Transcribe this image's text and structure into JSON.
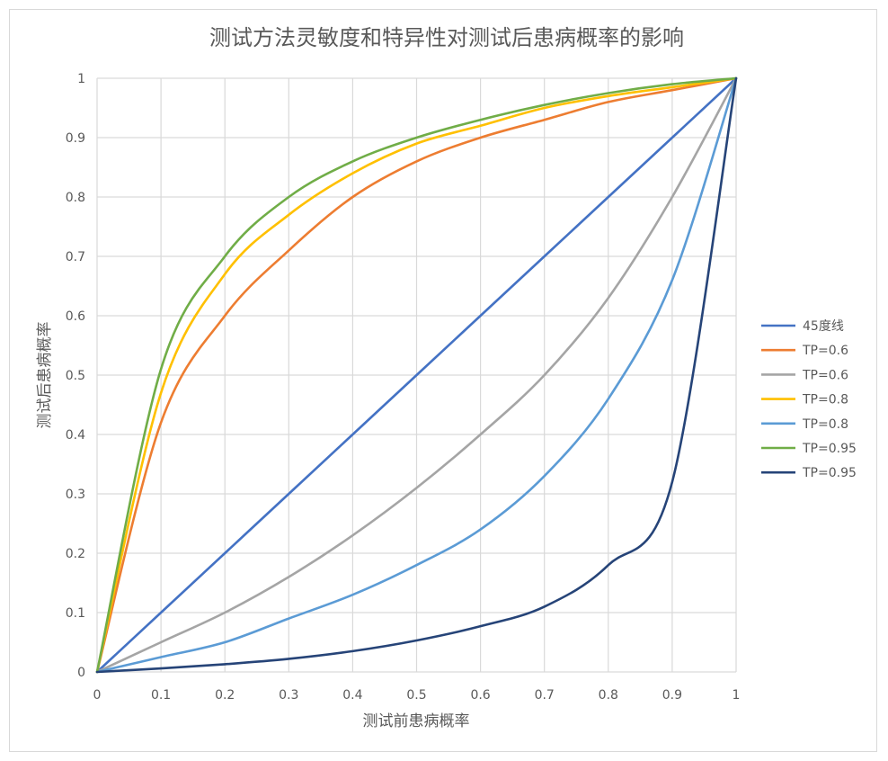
{
  "chart_data": {
    "type": "line",
    "title": "测试方法灵敏度和特异性对测试后患病概率的影响",
    "xlabel": "测试前患病概率",
    "ylabel": "测试后患病概率",
    "xlim": [
      0,
      1
    ],
    "ylim": [
      0,
      1
    ],
    "xticks": [
      "0",
      "0.1",
      "0.2",
      "0.3",
      "0.4",
      "0.5",
      "0.6",
      "0.7",
      "0.8",
      "0.9",
      "1"
    ],
    "yticks": [
      "0",
      "0.1",
      "0.2",
      "0.3",
      "0.4",
      "0.5",
      "0.6",
      "0.7",
      "0.8",
      "0.9",
      "1"
    ],
    "grid": true,
    "legend_position": "right",
    "x": [
      0,
      0.1,
      0.2,
      0.3,
      0.4,
      0.5,
      0.6,
      0.7,
      0.8,
      0.9,
      1
    ],
    "series": [
      {
        "name": "45度线",
        "color": "#4472c4",
        "values": [
          0,
          0.1,
          0.2,
          0.3,
          0.4,
          0.5,
          0.6,
          0.7,
          0.8,
          0.9,
          1
        ]
      },
      {
        "name": "TP=0.6",
        "color": "#ed7d31",
        "values": [
          0,
          0.42,
          0.6,
          0.71,
          0.8,
          0.86,
          0.9,
          0.93,
          0.96,
          0.98,
          1
        ]
      },
      {
        "name": "TP=0.6",
        "color": "#a5a5a5",
        "values": [
          0,
          0.05,
          0.1,
          0.16,
          0.23,
          0.31,
          0.4,
          0.5,
          0.63,
          0.8,
          1
        ]
      },
      {
        "name": "TP=0.8",
        "color": "#ffc000",
        "values": [
          0,
          0.47,
          0.67,
          0.77,
          0.84,
          0.89,
          0.92,
          0.95,
          0.97,
          0.985,
          1
        ]
      },
      {
        "name": "TP=0.8",
        "color": "#5b9bd5",
        "values": [
          0,
          0.025,
          0.05,
          0.09,
          0.13,
          0.18,
          0.24,
          0.33,
          0.46,
          0.66,
          1
        ]
      },
      {
        "name": "TP=0.95",
        "color": "#70ad47",
        "values": [
          0,
          0.51,
          0.7,
          0.8,
          0.86,
          0.9,
          0.93,
          0.955,
          0.975,
          0.99,
          1
        ]
      },
      {
        "name": "TP=0.95",
        "color": "#264478",
        "values": [
          0,
          0.006,
          0.013,
          0.022,
          0.035,
          0.053,
          0.077,
          0.11,
          0.18,
          0.32,
          1
        ]
      }
    ]
  }
}
